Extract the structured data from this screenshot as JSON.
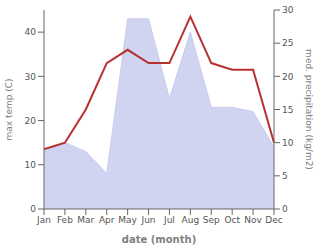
{
  "chart_data": {
    "type": "line",
    "xlabel": "date (month)",
    "ylabel": "max temp (C)",
    "y2label": "med. precipitation (kg/m2)",
    "categories": [
      "Jan",
      "Feb",
      "Mar",
      "Apr",
      "May",
      "Jun",
      "Jul",
      "Aug",
      "Sep",
      "Oct",
      "Nov",
      "Dec"
    ],
    "series": [
      {
        "type": "area",
        "color": "#c8ccee",
        "values": [
          13,
          15,
          13,
          8,
          43,
          43,
          25,
          40,
          23,
          23,
          22,
          14
        ],
        "lower": [
          0,
          0,
          0,
          0,
          0,
          0,
          0,
          0,
          0,
          0,
          0,
          0
        ]
      },
      {
        "type": "line",
        "color": "#b83030",
        "axis": "y2",
        "values": [
          9,
          10,
          15,
          22,
          24,
          22,
          22,
          29,
          22,
          21,
          21,
          10
        ]
      }
    ],
    "ylim": [
      0,
      45
    ],
    "yticks": [
      0,
      10,
      20,
      30,
      40
    ],
    "y2lim": [
      0,
      30
    ],
    "y2ticks": [
      0,
      5,
      10,
      15,
      20,
      25,
      30
    ],
    "grid": false
  }
}
